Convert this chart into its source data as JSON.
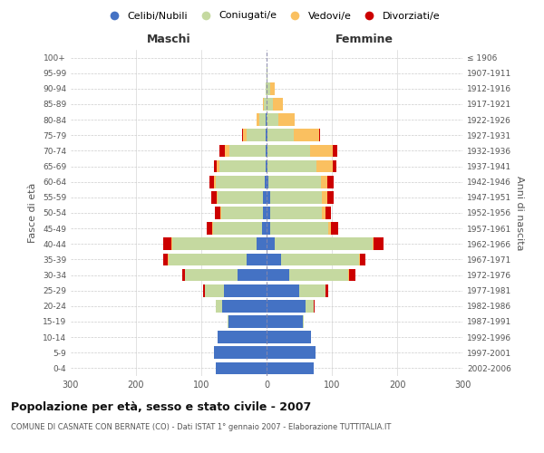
{
  "age_groups": [
    "0-4",
    "5-9",
    "10-14",
    "15-19",
    "20-24",
    "25-29",
    "30-34",
    "35-39",
    "40-44",
    "45-49",
    "50-54",
    "55-59",
    "60-64",
    "65-69",
    "70-74",
    "75-79",
    "80-84",
    "85-89",
    "90-94",
    "95-99",
    "100+"
  ],
  "birth_years": [
    "2002-2006",
    "1997-2001",
    "1992-1996",
    "1987-1991",
    "1982-1986",
    "1977-1981",
    "1972-1976",
    "1967-1971",
    "1962-1966",
    "1957-1961",
    "1952-1956",
    "1947-1951",
    "1942-1946",
    "1937-1941",
    "1932-1936",
    "1927-1931",
    "1922-1926",
    "1917-1921",
    "1912-1916",
    "1907-1911",
    "≤ 1906"
  ],
  "maschi": {
    "celibinubili": [
      78,
      80,
      75,
      58,
      68,
      65,
      45,
      30,
      15,
      7,
      5,
      5,
      3,
      2,
      2,
      1,
      1,
      0,
      0,
      0,
      0
    ],
    "coniugati": [
      0,
      0,
      0,
      2,
      10,
      30,
      80,
      120,
      130,
      75,
      65,
      70,
      75,
      70,
      55,
      30,
      10,
      4,
      2,
      0,
      0
    ],
    "vedovi": [
      0,
      0,
      0,
      0,
      0,
      0,
      0,
      1,
      1,
      1,
      1,
      2,
      2,
      4,
      7,
      5,
      4,
      1,
      0,
      0,
      0
    ],
    "divorziati": [
      0,
      0,
      0,
      0,
      0,
      2,
      4,
      8,
      12,
      8,
      8,
      8,
      8,
      5,
      8,
      1,
      0,
      0,
      0,
      0,
      0
    ]
  },
  "femmine": {
    "celibinubili": [
      72,
      75,
      68,
      55,
      60,
      50,
      35,
      22,
      12,
      5,
      5,
      5,
      3,
      2,
      2,
      1,
      0,
      0,
      0,
      0,
      0
    ],
    "coniugate": [
      0,
      0,
      0,
      2,
      12,
      40,
      90,
      120,
      150,
      90,
      80,
      80,
      80,
      75,
      65,
      40,
      18,
      10,
      5,
      1,
      0
    ],
    "vedove": [
      0,
      0,
      0,
      0,
      0,
      0,
      1,
      1,
      2,
      3,
      5,
      8,
      10,
      25,
      35,
      40,
      25,
      15,
      8,
      1,
      0
    ],
    "divorziate": [
      0,
      0,
      0,
      0,
      2,
      5,
      10,
      8,
      15,
      12,
      8,
      10,
      10,
      5,
      7,
      1,
      0,
      0,
      0,
      0,
      0
    ]
  },
  "colors": {
    "celibinubili": "#4472c4",
    "coniugati": "#c5d9a0",
    "vedovi": "#fac060",
    "divorziati": "#cc0000"
  },
  "xlim": 300,
  "title": "Popolazione per età, sesso e stato civile - 2007",
  "subtitle": "COMUNE DI CASNATE CON BERNATE (CO) - Dati ISTAT 1° gennaio 2007 - Elaborazione TUTTITALIA.IT",
  "ylabel": "Fasce di età",
  "ylabel_right": "Anni di nascita",
  "xlabel_left": "Maschi",
  "xlabel_right": "Femmine",
  "legend_labels": [
    "Celibi/Nubili",
    "Coniugati/e",
    "Vedovi/e",
    "Divorziati/e"
  ],
  "background_color": "#ffffff",
  "grid_color": "#cccccc"
}
